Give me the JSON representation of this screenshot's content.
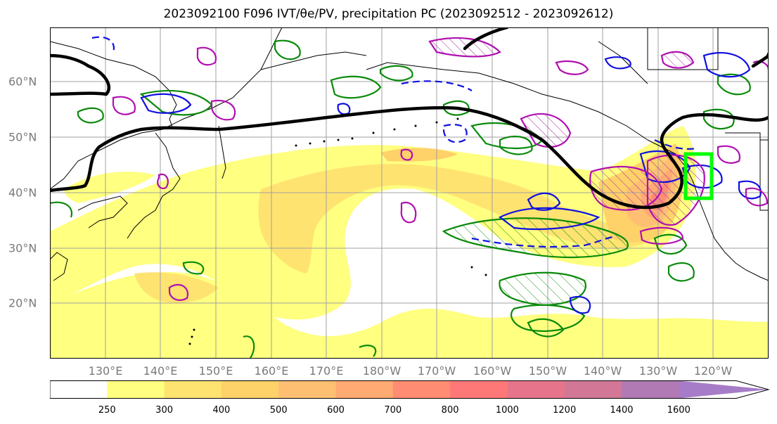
{
  "title": "2023092100 F096 IVT/θe/PV, precipitation PC (2023092512 - 2023092612)",
  "map": {
    "lat_labels": [
      "60°N",
      "50°N",
      "40°N",
      "30°N",
      "20°N"
    ],
    "lon_labels": [
      "130°E",
      "140°E",
      "150°E",
      "160°E",
      "170°E",
      "180°W",
      "170°W",
      "160°W",
      "150°W",
      "140°W",
      "130°W",
      "120°W"
    ],
    "lon_range": [
      120,
      250
    ],
    "lat_range": [
      10,
      70
    ],
    "highlight_box": {
      "lon": [
        235,
        240
      ],
      "lat": [
        39,
        47
      ],
      "color": "#00ff00"
    }
  },
  "colorbar": {
    "levels": [
      250,
      300,
      400,
      500,
      600,
      700,
      800,
      1000,
      1200,
      1400,
      1600
    ],
    "level_labels": [
      "250",
      "300",
      "400",
      "500",
      "600",
      "700",
      "800",
      "1000",
      "1200",
      "1400",
      "1600"
    ],
    "colors": [
      "#ffffff",
      "#ffff80",
      "#ffe370",
      "#ffd169",
      "#ffbf73",
      "#ffaa73",
      "#ff8c73",
      "#ff7878",
      "#e6758c",
      "#d27896",
      "#b27ab4",
      "#a67cc8"
    ]
  }
}
